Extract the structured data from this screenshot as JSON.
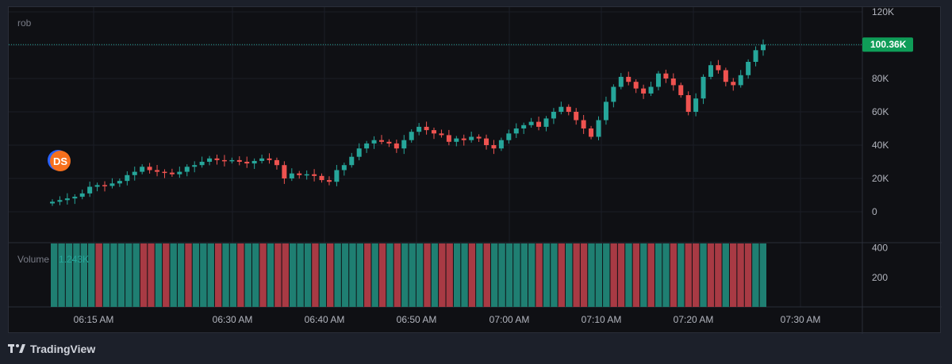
{
  "symbol": "rob",
  "volume": {
    "label": "Volume",
    "value": "1.243K"
  },
  "marker": {
    "text": "DS"
  },
  "brand": "TradingView",
  "colors": {
    "background": "#0f1014",
    "up": "#26a69a",
    "down": "#ef5350",
    "volume_up": "#1f7f72",
    "volume_down": "#a83a44",
    "last_price": "#0f9d58",
    "marker_fill": "#f7701d",
    "marker_ring": "#2962ff"
  },
  "chart_data": {
    "type": "candlestick",
    "price_axis": {
      "ticks": [
        "120K",
        "100K",
        "80K",
        "60K",
        "40K",
        "20K",
        "0"
      ],
      "ylim": [
        0,
        120000
      ]
    },
    "volume_axis": {
      "ticks": [
        "400",
        "200"
      ],
      "ylim": [
        0,
        430
      ]
    },
    "time_axis": {
      "ticks": [
        "06:15 AM",
        "06:30 AM",
        "06:40 AM",
        "06:50 AM",
        "07:00 AM",
        "07:10 AM",
        "07:20 AM",
        "07:30 AM"
      ]
    },
    "last_price": {
      "value": 100360,
      "label": "100.36K"
    },
    "close_series": [
      6000,
      7000,
      8000,
      9000,
      11000,
      15000,
      16000,
      15500,
      17000,
      18500,
      22000,
      24000,
      27000,
      25000,
      24000,
      23500,
      22500,
      24000,
      27000,
      28000,
      30000,
      32000,
      31000,
      30500,
      31000,
      30000,
      29000,
      30500,
      32000,
      31000,
      28000,
      20000,
      23000,
      22000,
      22500,
      21500,
      19000,
      18000,
      25000,
      28000,
      33000,
      38000,
      41000,
      43000,
      42000,
      41000,
      38000,
      43000,
      48000,
      51000,
      49000,
      47000,
      46000,
      42000,
      44000,
      43000,
      45000,
      44000,
      40000,
      38000,
      43000,
      47000,
      50000,
      52000,
      54000,
      51000,
      56000,
      60000,
      63000,
      60000,
      55000,
      50000,
      45000,
      55000,
      66000,
      75000,
      81000,
      78000,
      74000,
      71000,
      75000,
      83000,
      80000,
      76000,
      70000,
      60000,
      68000,
      81000,
      88000,
      85000,
      78000,
      76000,
      82000,
      90000,
      97000,
      100360
    ],
    "volume_up": [
      true,
      true,
      true,
      true,
      true,
      true,
      false,
      true,
      true,
      true,
      true,
      true,
      false,
      false,
      true,
      false,
      true,
      true,
      false,
      true,
      true,
      true,
      false,
      true,
      true,
      false,
      true,
      true,
      false,
      true,
      false,
      false,
      true,
      true,
      true,
      false,
      true,
      false,
      true,
      true,
      true,
      true,
      false,
      true,
      false,
      true,
      false,
      true,
      true,
      true,
      false,
      true,
      false,
      false,
      true,
      true,
      false,
      true,
      false,
      true,
      true,
      true,
      true,
      true,
      true,
      false,
      true,
      true,
      false,
      true,
      false,
      false,
      true,
      true,
      true,
      false,
      false,
      true,
      false,
      true,
      false,
      true,
      true,
      false,
      true,
      false,
      false,
      true,
      false,
      false,
      true,
      false,
      false,
      false,
      true,
      true
    ],
    "volume_values": [
      430,
      430,
      430,
      430,
      430,
      430,
      430,
      430,
      430,
      430,
      430,
      430,
      430,
      430,
      430,
      430,
      430,
      430,
      430,
      430,
      430,
      430,
      430,
      430,
      430,
      430,
      430,
      430,
      430,
      430,
      430,
      430,
      430,
      430,
      430,
      430,
      430,
      430,
      430,
      430,
      430,
      430,
      430,
      430,
      430,
      430,
      430,
      430,
      430,
      430,
      430,
      430,
      430,
      430,
      430,
      430,
      430,
      430,
      430,
      430,
      430,
      430,
      430,
      430,
      430,
      430,
      430,
      430,
      430,
      430,
      430,
      430,
      430,
      430,
      430,
      430,
      430,
      430,
      430,
      430,
      430,
      430,
      430,
      430,
      430,
      430,
      430,
      430,
      430,
      430,
      430,
      430,
      430,
      430,
      430,
      430
    ]
  }
}
